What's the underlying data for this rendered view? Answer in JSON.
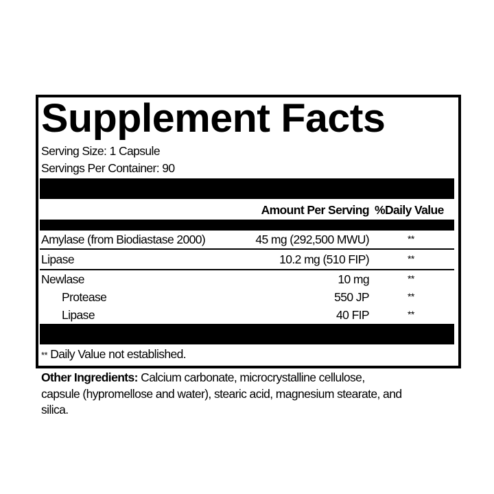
{
  "title": "Supplement Facts",
  "serving_size": "Serving Size: 1 Capsule",
  "servings_per_container": "Servings Per Container: 90",
  "header": {
    "amount": "Amount Per Serving",
    "daily_value": "%Daily Value"
  },
  "rows": [
    {
      "name": "Amylase (from Biodiastase 2000)",
      "amount": "45 mg (292,500 MWU)",
      "dv": "**"
    },
    {
      "name": "Lipase",
      "amount": "10.2 mg (510 FIP)",
      "dv": "**"
    },
    {
      "name": "Newlase",
      "amount": "10 mg",
      "dv": "**"
    },
    {
      "name": "Protease",
      "amount": "550 JP",
      "dv": "**"
    },
    {
      "name": "Lipase",
      "amount": "40 FIP",
      "dv": "**"
    }
  ],
  "footnote": {
    "mark": "**",
    "text": "Daily Value not established."
  },
  "other_ingredients": {
    "label": "Other Ingredients:",
    "line1": "Calcium carbonate, microcrystalline cellulose,",
    "line2": "capsule (hypromellose and water), stearic acid, magnesium stearate, and",
    "line3": "silica."
  }
}
